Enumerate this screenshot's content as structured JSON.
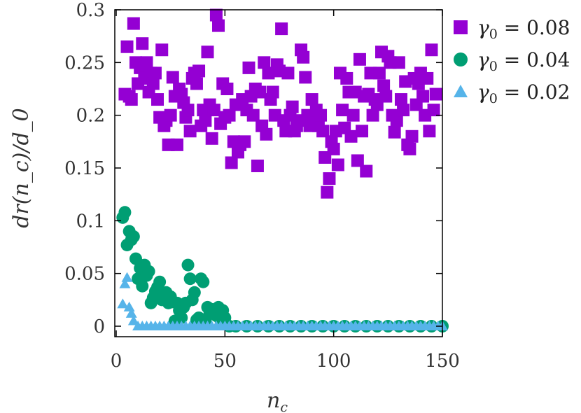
{
  "chart_data": {
    "type": "scatter",
    "xlabel_main": "n",
    "xlabel_sub": "c",
    "ylabel": "dr(n_c)/d_0",
    "xlim": [
      0,
      150
    ],
    "ylim": [
      -0.01,
      0.3
    ],
    "xticks": [
      0,
      50,
      100,
      150
    ],
    "yticks": [
      0,
      0.05,
      0.1,
      0.15,
      0.2,
      0.25,
      0.3
    ],
    "ytick_labels": [
      "0",
      "0.05",
      "0.1",
      "0.15",
      "0.2",
      "0.25",
      "0.3"
    ],
    "legend_position": "right",
    "series": [
      {
        "name": "γ0 = 0.08",
        "legend_symbol": "γ",
        "legend_sub": "0",
        "legend_value": " = 0.08",
        "marker": "square",
        "color": "#9400d3",
        "points": [
          [
            4,
            0.22
          ],
          [
            5,
            0.265
          ],
          [
            6,
            0.218
          ],
          [
            7,
            0.215
          ],
          [
            8,
            0.287
          ],
          [
            9,
            0.25
          ],
          [
            10,
            0.23
          ],
          [
            11,
            0.245
          ],
          [
            12,
            0.268
          ],
          [
            13,
            0.235
          ],
          [
            14,
            0.25
          ],
          [
            15,
            0.222
          ],
          [
            16,
            0.24
          ],
          [
            17,
            0.23
          ],
          [
            18,
            0.24
          ],
          [
            19,
            0.215
          ],
          [
            20,
            0.198
          ],
          [
            21,
            0.262
          ],
          [
            22,
            0.19
          ],
          [
            23,
            0.195
          ],
          [
            24,
            0.172
          ],
          [
            25,
            0.2
          ],
          [
            26,
            0.236
          ],
          [
            27,
            0.218
          ],
          [
            28,
            0.172
          ],
          [
            29,
            0.225
          ],
          [
            30,
            0.22
          ],
          [
            31,
            0.212
          ],
          [
            32,
            0.198
          ],
          [
            33,
            0.205
          ],
          [
            34,
            0.185
          ],
          [
            35,
            0.235
          ],
          [
            36,
            0.24
          ],
          [
            37,
            0.23
          ],
          [
            38,
            0.242
          ],
          [
            39,
            0.19
          ],
          [
            40,
            0.205
          ],
          [
            41,
            0.195
          ],
          [
            42,
            0.26
          ],
          [
            43,
            0.21
          ],
          [
            44,
            0.178
          ],
          [
            45,
            0.205
          ],
          [
            46,
            0.295
          ],
          [
            47,
            0.285
          ],
          [
            48,
            0.192
          ],
          [
            49,
            0.23
          ],
          [
            50,
            0.198
          ],
          [
            51,
            0.225
          ],
          [
            52,
            0.2
          ],
          [
            53,
            0.155
          ],
          [
            54,
            0.175
          ],
          [
            55,
            0.21
          ],
          [
            56,
            0.165
          ],
          [
            57,
            0.172
          ],
          [
            58,
            0.215
          ],
          [
            59,
            0.175
          ],
          [
            60,
            0.205
          ],
          [
            61,
            0.245
          ],
          [
            62,
            0.218
          ],
          [
            63,
            0.2
          ],
          [
            64,
            0.225
          ],
          [
            65,
            0.152
          ],
          [
            66,
            0.222
          ],
          [
            67,
            0.19
          ],
          [
            68,
            0.25
          ],
          [
            69,
            0.182
          ],
          [
            70,
            0.24
          ],
          [
            71,
            0.215
          ],
          [
            72,
            0.222
          ],
          [
            73,
            0.2
          ],
          [
            74,
            0.248
          ],
          [
            75,
            0.242
          ],
          [
            76,
            0.282
          ],
          [
            77,
            0.195
          ],
          [
            78,
            0.185
          ],
          [
            79,
            0.24
          ],
          [
            80,
            0.2
          ],
          [
            81,
            0.208
          ],
          [
            82,
            0.185
          ],
          [
            83,
            0.19
          ],
          [
            84,
            0.195
          ],
          [
            85,
            0.262
          ],
          [
            86,
            0.255
          ],
          [
            87,
            0.236
          ],
          [
            88,
            0.2
          ],
          [
            89,
            0.19
          ],
          [
            90,
            0.215
          ],
          [
            91,
            0.195
          ],
          [
            92,
            0.205
          ],
          [
            93,
            0.19
          ],
          [
            94,
            0.2
          ],
          [
            95,
            0.185
          ],
          [
            96,
            0.16
          ],
          [
            97,
            0.127
          ],
          [
            98,
            0.14
          ],
          [
            99,
            0.175
          ],
          [
            100,
            0.168
          ],
          [
            101,
            0.185
          ],
          [
            102,
            0.153
          ],
          [
            103,
            0.24
          ],
          [
            104,
            0.205
          ],
          [
            105,
            0.188
          ],
          [
            106,
            0.235
          ],
          [
            107,
            0.222
          ],
          [
            108,
            0.18
          ],
          [
            109,
            0.2
          ],
          [
            110,
            0.222
          ],
          [
            111,
            0.157
          ],
          [
            112,
            0.253
          ],
          [
            113,
            0.185
          ],
          [
            114,
            0.218
          ],
          [
            115,
            0.147
          ],
          [
            116,
            0.22
          ],
          [
            117,
            0.24
          ],
          [
            118,
            0.2
          ],
          [
            119,
            0.215
          ],
          [
            120,
            0.21
          ],
          [
            121,
            0.24
          ],
          [
            122,
            0.26
          ],
          [
            123,
            0.228
          ],
          [
            124,
            0.218
          ],
          [
            125,
            0.256
          ],
          [
            126,
            0.25
          ],
          [
            127,
            0.2
          ],
          [
            128,
            0.184
          ],
          [
            129,
            0.195
          ],
          [
            130,
            0.25
          ],
          [
            131,
            0.215
          ],
          [
            132,
            0.205
          ],
          [
            133,
            0.232
          ],
          [
            134,
            0.172
          ],
          [
            135,
            0.168
          ],
          [
            136,
            0.18
          ],
          [
            137,
            0.235
          ],
          [
            138,
            0.21
          ],
          [
            139,
            0.23
          ],
          [
            140,
            0.24
          ],
          [
            141,
            0.218
          ],
          [
            142,
            0.2
          ],
          [
            143,
            0.235
          ],
          [
            144,
            0.185
          ],
          [
            145,
            0.262
          ],
          [
            146,
            0.205
          ],
          [
            147,
            0.22
          ]
        ]
      },
      {
        "name": "γ0 = 0.04",
        "legend_symbol": "γ",
        "legend_sub": "0",
        "legend_value": " = 0.04",
        "marker": "circle",
        "color": "#009e73",
        "points": [
          [
            3,
            0.103
          ],
          [
            4,
            0.108
          ],
          [
            5,
            0.077
          ],
          [
            6,
            0.09
          ],
          [
            7,
            0.082
          ],
          [
            8,
            0.085
          ],
          [
            9,
            0.064
          ],
          [
            10,
            0.045
          ],
          [
            11,
            0.055
          ],
          [
            12,
            0.038
          ],
          [
            13,
            0.058
          ],
          [
            14,
            0.048
          ],
          [
            15,
            0.052
          ],
          [
            16,
            0.022
          ],
          [
            17,
            0.027
          ],
          [
            18,
            0.033
          ],
          [
            19,
            0.037
          ],
          [
            20,
            0.042
          ],
          [
            21,
            0.025
          ],
          [
            22,
            0.025
          ],
          [
            23,
            0.032
          ],
          [
            24,
            0.022
          ],
          [
            25,
            0.028
          ],
          [
            26,
            0.023
          ],
          [
            27,
            0.005
          ],
          [
            28,
            0.022
          ],
          [
            29,
            0.015
          ],
          [
            30,
            0.008
          ],
          [
            31,
            0.018
          ],
          [
            32,
            0.022
          ],
          [
            33,
            0.058
          ],
          [
            34,
            0.045
          ],
          [
            35,
            0.025
          ],
          [
            36,
            0.032
          ],
          [
            37,
            0.006
          ],
          [
            38,
            0.008
          ],
          [
            39,
            0.045
          ],
          [
            40,
            0.042
          ],
          [
            41,
            0.005
          ],
          [
            42,
            0.018
          ],
          [
            43,
            0.012
          ],
          [
            44,
            0.016
          ],
          [
            45,
            0.015
          ],
          [
            46,
            0.01
          ],
          [
            47,
            0.018
          ],
          [
            48,
            0.006
          ],
          [
            49,
            0.015
          ],
          [
            50,
            0.008
          ],
          [
            52,
            0.0
          ],
          [
            55,
            0.0
          ],
          [
            60,
            0.0
          ],
          [
            65,
            0.0
          ],
          [
            70,
            0.0
          ],
          [
            75,
            0.0
          ],
          [
            80,
            0.0
          ],
          [
            85,
            0.0
          ],
          [
            90,
            0.0
          ],
          [
            95,
            0.0
          ],
          [
            100,
            0.0
          ],
          [
            105,
            0.0
          ],
          [
            110,
            0.0
          ],
          [
            115,
            0.0
          ],
          [
            120,
            0.0
          ],
          [
            125,
            0.0
          ],
          [
            130,
            0.0
          ],
          [
            135,
            0.0
          ],
          [
            140,
            0.0
          ],
          [
            145,
            0.0
          ],
          [
            150,
            0.0
          ]
        ]
      },
      {
        "name": "γ0 = 0.02",
        "legend_symbol": "γ",
        "legend_sub": "0",
        "legend_value": " = 0.02",
        "marker": "triangle",
        "color": "#56b4e9",
        "points": [
          [
            3,
            0.021
          ],
          [
            4,
            0.04
          ],
          [
            5,
            0.046
          ],
          [
            6,
            0.018
          ],
          [
            7,
            0.012
          ],
          [
            8,
            0.005
          ],
          [
            10,
            0.0
          ],
          [
            12,
            0.0
          ],
          [
            14,
            0.0
          ],
          [
            16,
            0.0
          ],
          [
            18,
            0.0
          ],
          [
            20,
            0.0
          ],
          [
            22,
            0.0
          ],
          [
            24,
            0.0
          ],
          [
            26,
            0.0
          ],
          [
            28,
            0.0
          ],
          [
            30,
            0.0
          ],
          [
            32,
            0.0
          ],
          [
            34,
            0.0
          ],
          [
            36,
            0.0
          ],
          [
            38,
            0.0
          ],
          [
            40,
            0.0
          ],
          [
            42,
            0.0
          ],
          [
            44,
            0.0
          ],
          [
            46,
            0.0
          ],
          [
            48,
            0.0
          ],
          [
            50,
            0.0
          ],
          [
            52,
            0.0
          ],
          [
            54,
            0.0
          ],
          [
            56,
            0.0
          ],
          [
            58,
            0.0
          ],
          [
            60,
            0.0
          ],
          [
            62,
            0.0
          ],
          [
            64,
            0.0
          ],
          [
            66,
            0.0
          ],
          [
            68,
            0.0
          ],
          [
            70,
            0.0
          ],
          [
            72,
            0.0
          ],
          [
            74,
            0.0
          ],
          [
            76,
            0.0
          ],
          [
            78,
            0.0
          ],
          [
            80,
            0.0
          ],
          [
            82,
            0.0
          ],
          [
            84,
            0.0
          ],
          [
            86,
            0.0
          ],
          [
            88,
            0.0
          ],
          [
            90,
            0.0
          ],
          [
            92,
            0.0
          ],
          [
            94,
            0.0
          ],
          [
            96,
            0.0
          ],
          [
            98,
            0.0
          ],
          [
            100,
            0.0
          ],
          [
            102,
            0.0
          ],
          [
            104,
            0.0
          ],
          [
            106,
            0.0
          ],
          [
            108,
            0.0
          ],
          [
            110,
            0.0
          ],
          [
            112,
            0.0
          ],
          [
            114,
            0.0
          ],
          [
            116,
            0.0
          ],
          [
            118,
            0.0
          ],
          [
            120,
            0.0
          ],
          [
            122,
            0.0
          ],
          [
            124,
            0.0
          ],
          [
            126,
            0.0
          ],
          [
            128,
            0.0
          ],
          [
            130,
            0.0
          ],
          [
            132,
            0.0
          ],
          [
            134,
            0.0
          ],
          [
            136,
            0.0
          ],
          [
            138,
            0.0
          ],
          [
            140,
            0.0
          ],
          [
            142,
            0.0
          ],
          [
            144,
            0.0
          ],
          [
            146,
            0.0
          ],
          [
            148,
            0.0
          ],
          [
            150,
            0.0
          ]
        ]
      }
    ]
  }
}
